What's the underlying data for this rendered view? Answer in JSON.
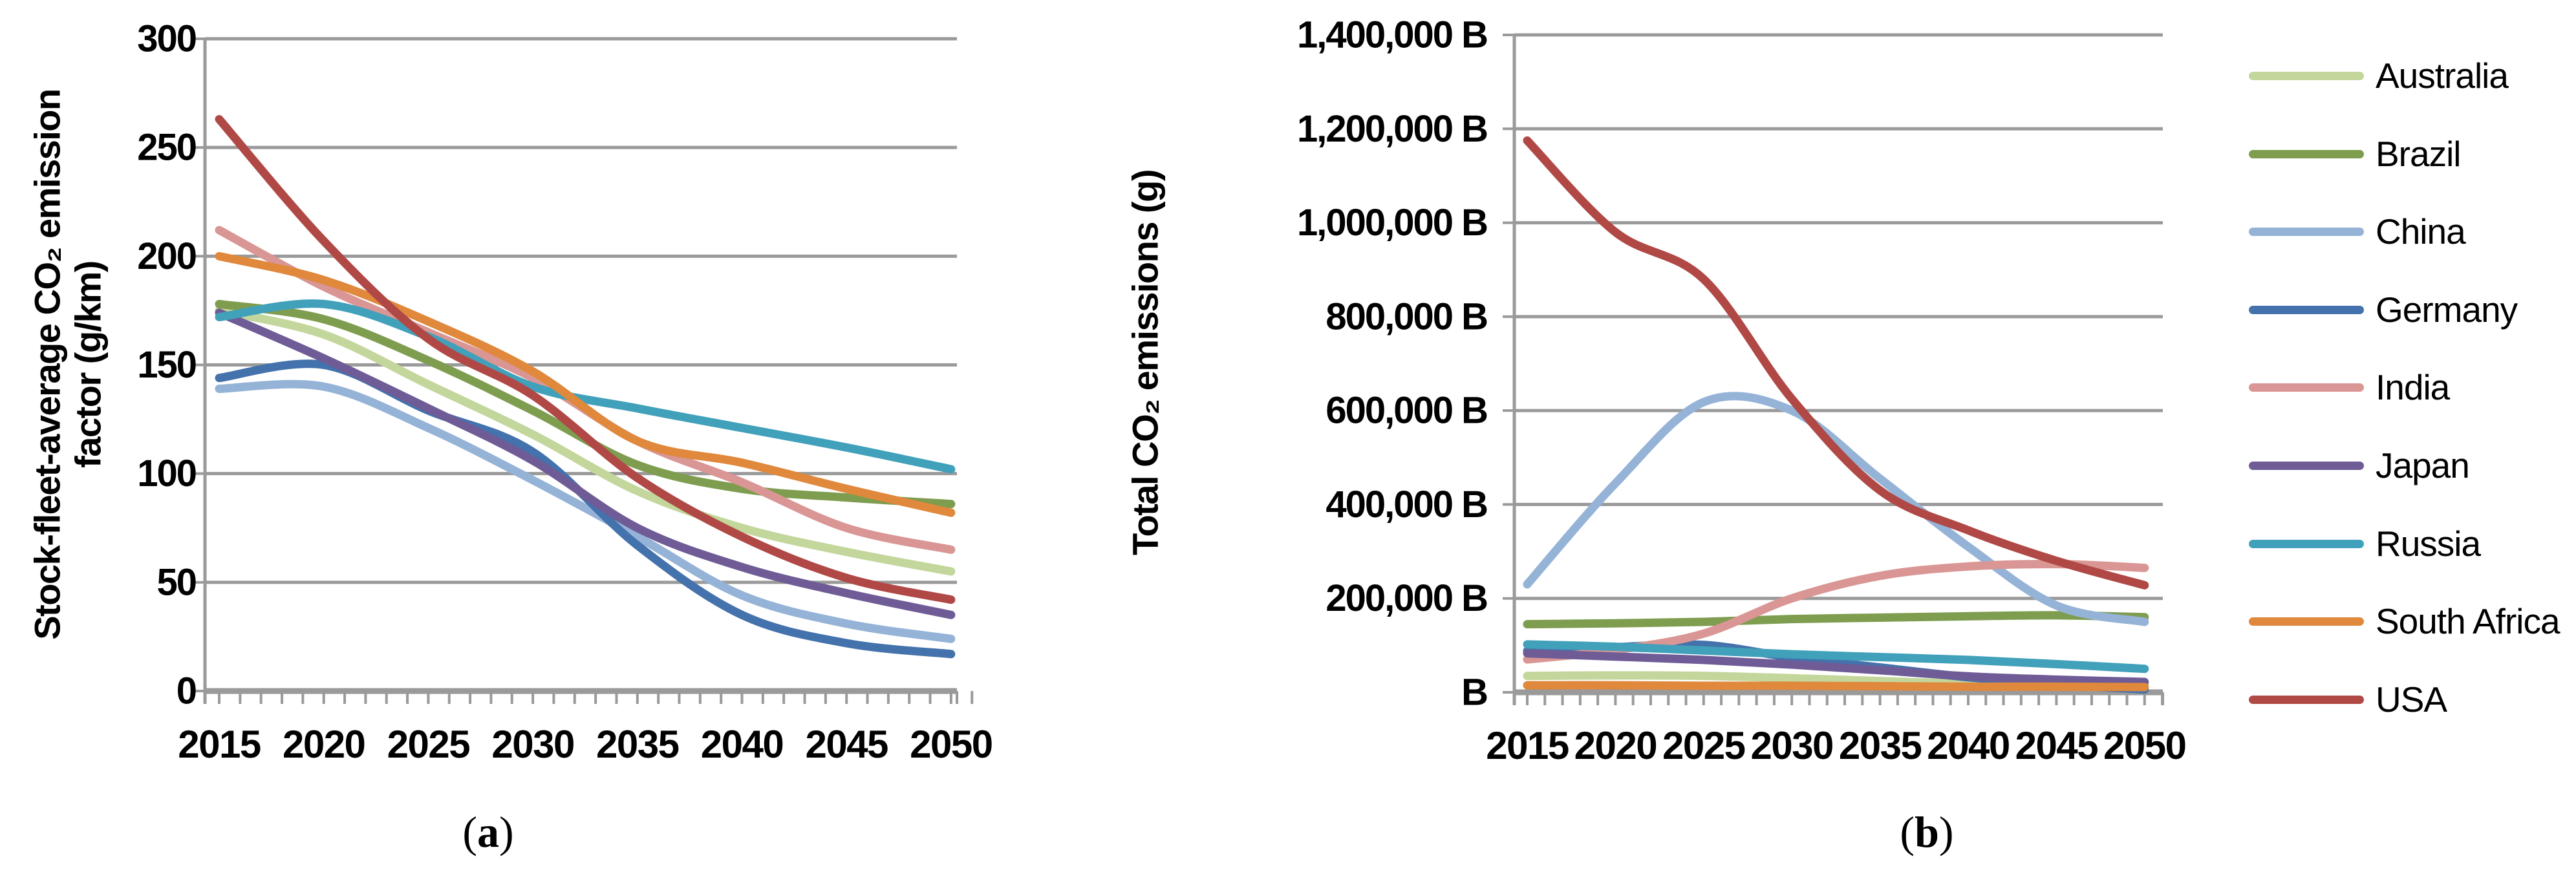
{
  "captions": [
    {
      "open": "(",
      "label": "a",
      "close": ")"
    },
    {
      "open": "(",
      "label": "b",
      "close": ")"
    }
  ],
  "legend": {
    "items": [
      {
        "label": "Australia",
        "color": "#C3D69B"
      },
      {
        "label": "Brazil",
        "color": "#7E9D4F"
      },
      {
        "label": "China",
        "color": "#95B3D7"
      },
      {
        "label": "Germany",
        "color": "#4472AC"
      },
      {
        "label": "India",
        "color": "#D99694"
      },
      {
        "label": "Japan",
        "color": "#6F5C96"
      },
      {
        "label": "Russia",
        "color": "#41A0BA"
      },
      {
        "label": "South Africa",
        "color": "#E0883C"
      },
      {
        "label": "USA",
        "color": "#B04946"
      }
    ]
  },
  "chart_data": [
    {
      "id": "a",
      "type": "line",
      "ylabel_lines": [
        "Stock-fleet-average CO₂ emission",
        "factor (g/km)"
      ],
      "ylabel_plain": "Stock-fleet-average CO2 emission factor (g/km)",
      "xlabel": "",
      "x": [
        2015,
        2020,
        2025,
        2030,
        2035,
        2040,
        2045,
        2050
      ],
      "x_tick_labels": [
        "2015",
        "2020",
        "2025",
        "2030",
        "2035",
        "2040",
        "2045",
        "2050"
      ],
      "ylim": [
        0,
        300
      ],
      "y_tick_step": 50,
      "y_tick_labels": [
        "0",
        "50",
        "100",
        "150",
        "200",
        "250",
        "300"
      ],
      "grid": "horizontal",
      "legend_position": "shared-right",
      "caption": "(a)",
      "series": [
        {
          "name": "Australia",
          "color": "#C3D69B",
          "values": [
            175,
            164,
            141,
            118,
            92,
            75,
            64,
            55
          ]
        },
        {
          "name": "Brazil",
          "color": "#7E9D4F",
          "values": [
            178,
            171,
            152,
            129,
            104,
            93,
            89,
            86
          ]
        },
        {
          "name": "China",
          "color": "#95B3D7",
          "values": [
            139,
            140,
            121,
            97,
            71,
            44,
            31,
            24
          ]
        },
        {
          "name": "Germany",
          "color": "#4472AC",
          "values": [
            144,
            150,
            129,
            110,
            67,
            35,
            22,
            17
          ]
        },
        {
          "name": "India",
          "color": "#D99694",
          "values": [
            212,
            186,
            165,
            144,
            115,
            96,
            75,
            65
          ]
        },
        {
          "name": "Japan",
          "color": "#6F5C96",
          "values": [
            174,
            153,
            130,
            106,
            75,
            57,
            45,
            35
          ]
        },
        {
          "name": "Russia",
          "color": "#41A0BA",
          "values": [
            172,
            178,
            163,
            140,
            130,
            121,
            112,
            102
          ]
        },
        {
          "name": "South Africa",
          "color": "#E0883C",
          "values": [
            200,
            189,
            170,
            147,
            115,
            105,
            93,
            82
          ]
        },
        {
          "name": "USA",
          "color": "#B04946",
          "values": [
            263,
            207,
            162,
            136,
            98,
            71,
            52,
            42
          ]
        }
      ]
    },
    {
      "id": "b",
      "type": "line",
      "ylabel": "Total CO₂ emissions (g)",
      "ylabel_plain": "Total CO2 emissions (g)",
      "xlabel": "",
      "x": [
        2015,
        2020,
        2025,
        2030,
        2035,
        2040,
        2045,
        2050
      ],
      "x_tick_labels": [
        "2015",
        "2020",
        "2025",
        "2030",
        "2035",
        "2040",
        "2045",
        "2050"
      ],
      "ylim": [
        0,
        1400000
      ],
      "y_tick_step": 200000,
      "y_tick_labels": [
        "B",
        "200,000 B",
        "400,000 B",
        "600,000 B",
        "800,000 B",
        "1,000,000 B",
        "1,200,000 B",
        "1,400,000 B"
      ],
      "grid": "horizontal",
      "legend_position": "shared-right",
      "caption": "(b)",
      "series": [
        {
          "name": "Australia",
          "color": "#C3D69B",
          "values": [
            35000,
            36000,
            35000,
            30000,
            24000,
            18000,
            15000,
            14000
          ]
        },
        {
          "name": "Brazil",
          "color": "#7E9D4F",
          "values": [
            145000,
            147000,
            150000,
            156000,
            159000,
            162000,
            164000,
            160000
          ]
        },
        {
          "name": "China",
          "color": "#95B3D7",
          "values": [
            230000,
            445000,
            618000,
            600000,
            455000,
            310000,
            185000,
            150000
          ]
        },
        {
          "name": "Germany",
          "color": "#4472AC",
          "values": [
            88000,
            96000,
            101000,
            74000,
            53000,
            32000,
            17000,
            6000
          ]
        },
        {
          "name": "India",
          "color": "#D99694",
          "values": [
            70000,
            90000,
            125000,
            200000,
            248000,
            268000,
            273000,
            265000
          ]
        },
        {
          "name": "Japan",
          "color": "#6F5C96",
          "values": [
            83000,
            76000,
            69000,
            59000,
            47000,
            34000,
            27000,
            22000
          ]
        },
        {
          "name": "Russia",
          "color": "#41A0BA",
          "values": [
            102000,
            97000,
            89000,
            81000,
            75000,
            69000,
            60000,
            50000
          ]
        },
        {
          "name": "South Africa",
          "color": "#E0883C",
          "values": [
            15000,
            15000,
            14000,
            14000,
            13000,
            12000,
            12000,
            11000
          ]
        },
        {
          "name": "USA",
          "color": "#B04946",
          "values": [
            1175000,
            980000,
            880000,
            625000,
            430000,
            345000,
            280000,
            228000
          ]
        }
      ]
    }
  ]
}
